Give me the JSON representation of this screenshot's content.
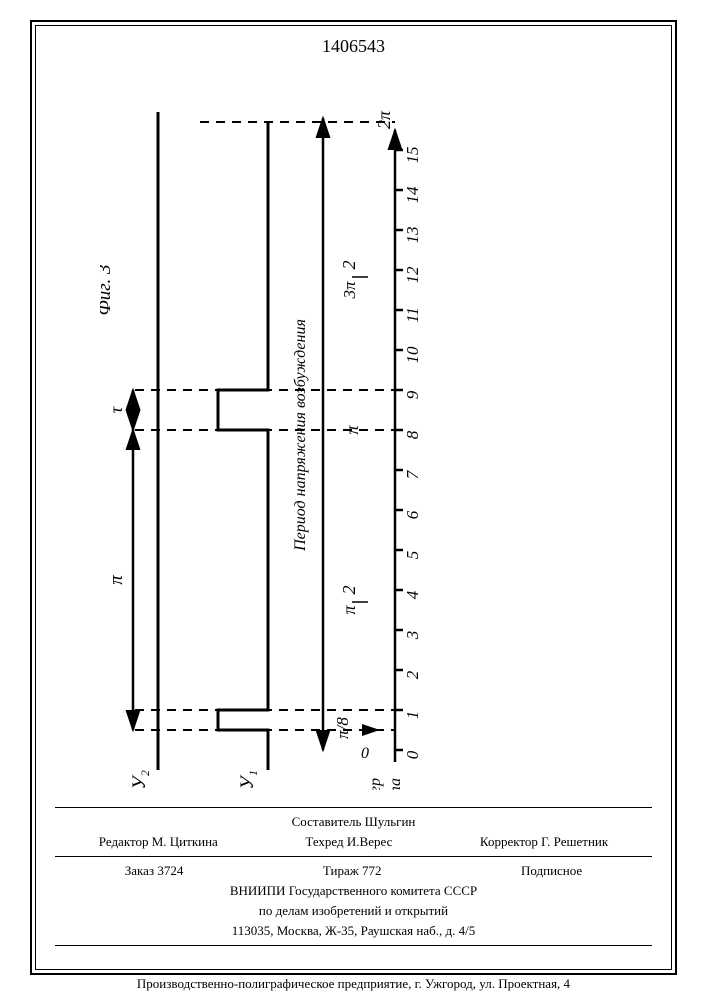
{
  "doc_number": "1406543",
  "diagram": {
    "type": "timing-diagram",
    "background_color": "#ffffff",
    "line_color": "#000000",
    "line_width": 2.5,
    "dash_pattern": "8,6",
    "ticks": [
      "0",
      "1",
      "2",
      "3",
      "4",
      "5",
      "6",
      "7",
      "8",
      "9",
      "10",
      "11",
      "12",
      "13",
      "14",
      "15"
    ],
    "tick_label_fontsize": 15,
    "tick_font_style": "italic",
    "axis_label_top": "Номер такта",
    "x_markers": [
      {
        "pos": "π/8",
        "drop_to_arrow": true
      },
      {
        "pos": "π/2"
      },
      {
        "pos": "π"
      },
      {
        "pos": "3π/2"
      },
      {
        "pos": "2π"
      }
    ],
    "period_label": "Период напряжения возбуждения",
    "signals": [
      {
        "name": "У₁",
        "high_level": 50,
        "low_level": 100,
        "transitions": [
          0.5,
          1,
          8,
          9
        ]
      },
      {
        "name": "У₂",
        "high_level": 50,
        "low_level": 100
      }
    ],
    "bottom_span": {
      "left": "π",
      "right": "τ"
    },
    "figure_label": "Фиг. 3"
  },
  "footer": {
    "roles": {
      "editor": "Редактор М. Циткина",
      "composer": "Составитель     Шульгин",
      "tech": "Техред И.Верес",
      "corrector": "Корректор Г. Решетник"
    },
    "imprint_row": {
      "order": "Заказ 3724",
      "tirage": "Тираж 772",
      "sub": "Подписное"
    },
    "org1": "ВНИИПИ Государственного комитета СССР",
    "org2": "по делам изобретений и открытий",
    "addr": "113035, Москва, Ж-35, Раушская наб., д. 4/5",
    "printer": "Производственно-полиграфическое предприятие, г. Ужгород, ул. Проектная, 4"
  }
}
